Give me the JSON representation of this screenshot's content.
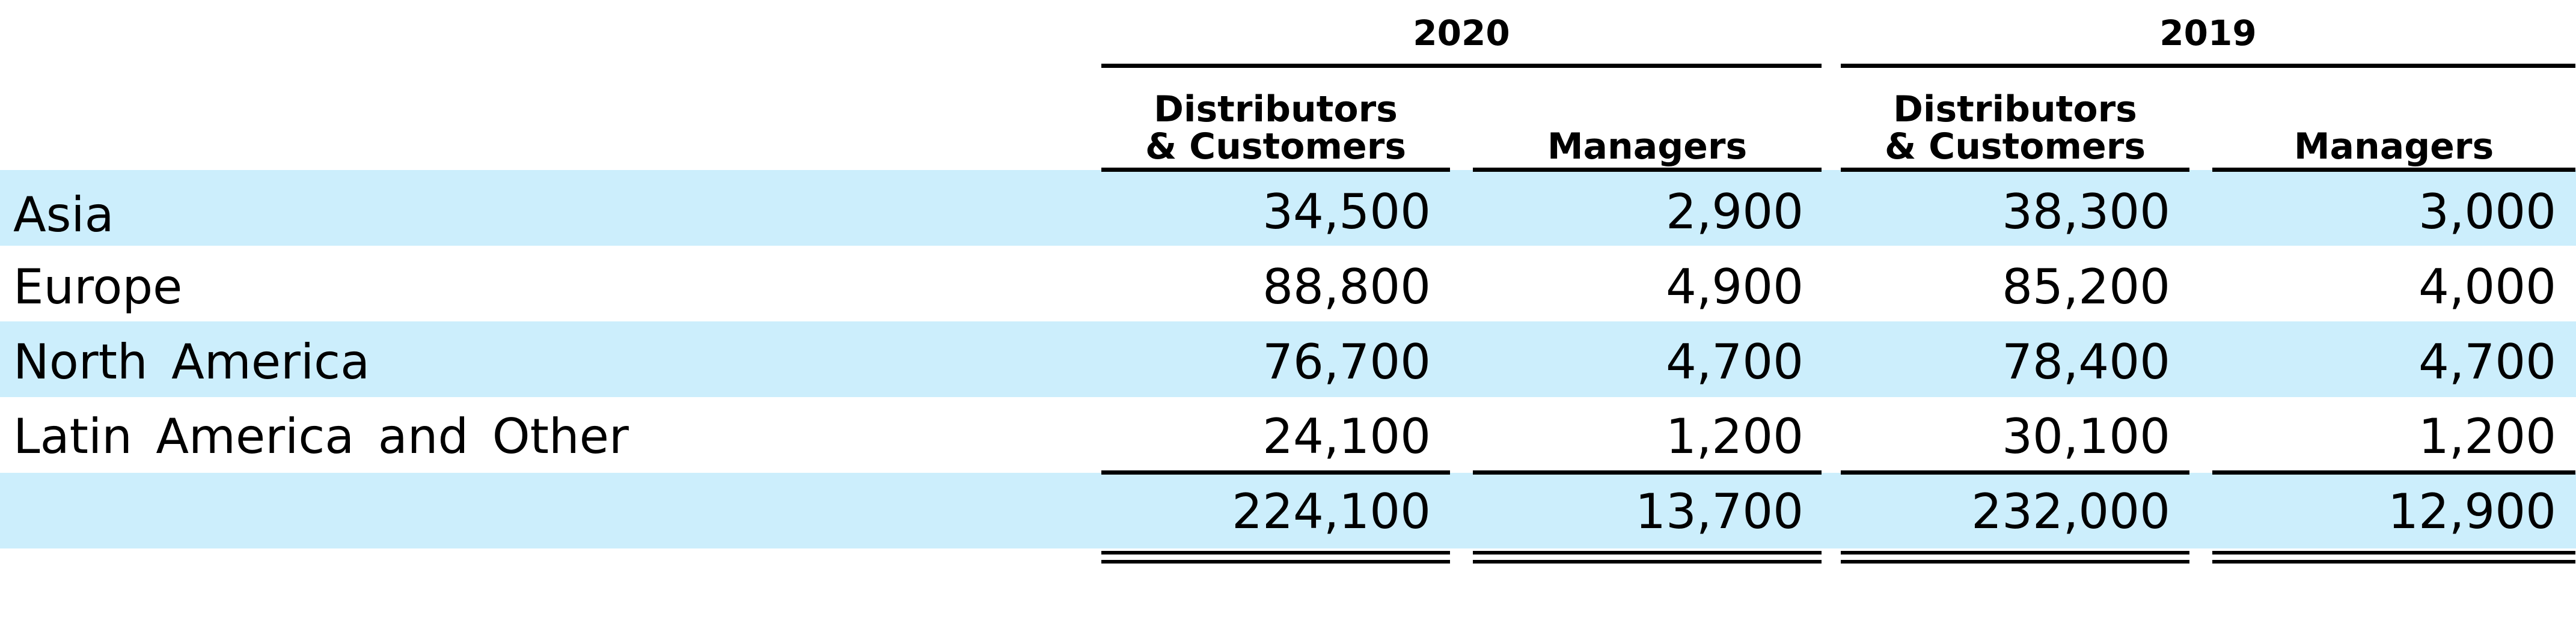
{
  "columns": {
    "year_2020": "2020",
    "year_2019": "2019",
    "distributors_customers": "Distributors\n& Customers",
    "distributors_line1": "Distributors",
    "distributors_line2": "& Customers",
    "managers": "Managers"
  },
  "rows": [
    {
      "label": "Asia",
      "d2020": "34,500",
      "m2020": "2,900",
      "d2019": "38,300",
      "m2019": "3,000"
    },
    {
      "label": "Europe",
      "d2020": "88,800",
      "m2020": "4,900",
      "d2019": "85,200",
      "m2019": "4,000"
    },
    {
      "label": "North America",
      "d2020": "76,700",
      "m2020": "4,700",
      "d2019": "78,400",
      "m2019": "4,700"
    },
    {
      "label": "Latin America and Other",
      "d2020": "24,100",
      "m2020": "1,200",
      "d2019": "30,100",
      "m2019": "1,200"
    }
  ],
  "total": {
    "label": "",
    "d2020": "224,100",
    "m2020": "13,700",
    "d2019": "232,000",
    "m2019": "12,900"
  },
  "colors": {
    "band": "#cceefc",
    "text": "#000000",
    "rule": "#000000"
  }
}
